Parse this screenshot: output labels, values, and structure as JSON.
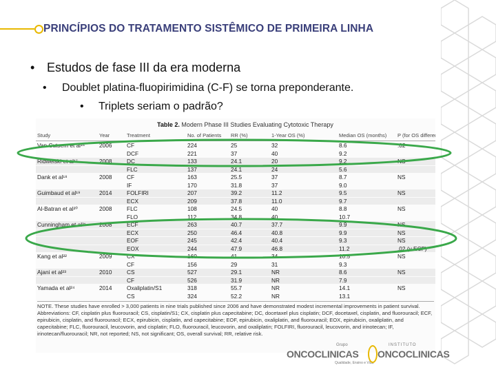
{
  "title": "PRINCÍPIOS DO TRATAMENTO SISTÊMICO DE PRIMEIRA LINHA",
  "bullets": {
    "level1": "Estudos de fase III da era moderna",
    "level2": "Doublet platina-fluopirimidina (C-F) se torna preponderante.",
    "level3": "Triplets seriam o padrão?"
  },
  "bullet_char": "•",
  "table": {
    "caption_label": "Table 2.",
    "caption_text": "Modern Phase III Studies Evaluating Cytotoxic Therapy",
    "headers": [
      "Study",
      "Year",
      "Treatment",
      "No. of Patients",
      "RR (%)",
      "1-Year OS (%)",
      "Median OS (months)",
      "P (for OS difference)"
    ],
    "rows": [
      [
        "Van Cutsem et al¹⁶",
        "2006",
        "CF",
        "224",
        "25",
        "32",
        "8.6",
        ".02"
      ],
      [
        "",
        "",
        "DCF",
        "221",
        "37",
        "40",
        "9.2",
        ""
      ],
      [
        "Ridwelski et al¹⁷",
        "2008",
        "DC",
        "133",
        "24.1",
        "20",
        "9.2",
        "NS"
      ],
      [
        "",
        "",
        "FLC",
        "137",
        "24.1",
        "24",
        "5.6",
        ""
      ],
      [
        "Dank et al¹⁸",
        "2008",
        "CF",
        "163",
        "25.5",
        "37",
        "8.7",
        "NS"
      ],
      [
        "",
        "",
        "IF",
        "170",
        "31.8",
        "37",
        "9.0",
        ""
      ],
      [
        "Guimbaud et al¹⁹",
        "2014",
        "FOLFIRI",
        "207",
        "39.2",
        "11.2",
        "9.5",
        "NS"
      ],
      [
        "",
        "",
        "ECX",
        "209",
        "37.8",
        "11.0",
        "9.7",
        ""
      ],
      [
        "Al-Batran et al²⁰",
        "2008",
        "FLC",
        "108",
        "24.5",
        "40",
        "8.8",
        "NS"
      ],
      [
        "",
        "",
        "FLO",
        "112",
        "34.8",
        "40",
        "10.7",
        ""
      ],
      [
        "Cunningham et al²¹",
        "2008",
        "ECF",
        "263",
        "40.7",
        "37.7",
        "9.9",
        "NS"
      ],
      [
        "",
        "",
        "ECX",
        "250",
        "46.4",
        "40.8",
        "9.9",
        "NS"
      ],
      [
        "",
        "",
        "EOF",
        "245",
        "42.4",
        "40.4",
        "9.3",
        "NS"
      ],
      [
        "",
        "",
        "EOX",
        "244",
        "47.9",
        "46.8",
        "11.2",
        ".02 (v ECF)"
      ],
      [
        "Kang et al²²",
        "2009",
        "CX",
        "160",
        "41",
        "34",
        "10.5",
        "NS"
      ],
      [
        "",
        "",
        "CF",
        "156",
        "29",
        "31",
        "9.3",
        ""
      ],
      [
        "Ajani et al²³",
        "2010",
        "CS",
        "527",
        "29.1",
        "NR",
        "8.6",
        "NS"
      ],
      [
        "",
        "",
        "CF",
        "526",
        "31.9",
        "NR",
        "7.9",
        ""
      ],
      [
        "Yamada et al²⁴",
        "2014",
        "Oxaliplatin/S1",
        "318",
        "55.7",
        "NR",
        "14.1",
        "NS"
      ],
      [
        "",
        "",
        "CS",
        "324",
        "52.2",
        "NR",
        "13.1",
        ""
      ]
    ],
    "notes": "NOTE. These studies have enrolled > 3,000 patients in nine trials published since 2006 and have demonstrated modest incremental improvements in patient survival. Abbreviations: CF, cisplatin plus fluorouracil; CS, cisplatin/S1; CX, cisplatin plus capecitabine; DC, docetaxel plus cisplatin; DCF, docetaxel, cisplatin, and fluorouracil; ECF, epirubicin, cisplatin, and fluorouracil; ECX, epirubicin, cisplatin, and capecitabine; EOF, epirubicin, oxaliplatin, and fluorouracil; EOX, epirubicin, oxaliplatin, and capecitabine; FLC, fluorouracil, leucovorin, and cisplatin; FLO, fluorouracil, leucovorin, and oxaliplatin; FOLFIRI, fluorouracil, leucovorin, and irinotecan; IF, irinotecan/fluorouracil; NR, not reported; NS, not significant; OS, overall survival; RR, relative risk."
  },
  "logos": {
    "oncoclinicas": "ONCOCLINICAS",
    "grupo": "Grupo",
    "instituto": "INSTITUTO",
    "instituto_brand": "ONCOCLINICAS",
    "tagline": "Qualidade, Ensino e Vida"
  },
  "colors": {
    "title": "#3a3f7a",
    "accent": "#e8b800",
    "oval": "#3aa84a"
  }
}
